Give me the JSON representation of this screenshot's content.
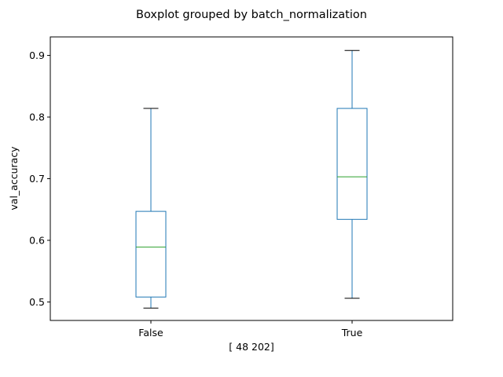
{
  "chart_data": {
    "type": "boxplot",
    "title": "Boxplot grouped by batch_normalization",
    "xlabel": "[ 48 202]",
    "ylabel": "val_accuracy",
    "categories": [
      "False",
      "True"
    ],
    "ylim": [
      0.47,
      0.93
    ],
    "yticks": [
      0.5,
      0.6,
      0.7,
      0.8,
      0.9
    ],
    "grid": false,
    "box_color": "#1f77b4",
    "median_color": "#2ca02c",
    "whisker_cap_color": "#000000",
    "boxes": [
      {
        "category": "False",
        "whisker_low": 0.49,
        "q1": 0.508,
        "median": 0.589,
        "q3": 0.647,
        "whisker_high": 0.814
      },
      {
        "category": "True",
        "whisker_low": 0.506,
        "q1": 0.634,
        "median": 0.703,
        "q3": 0.814,
        "whisker_high": 0.908
      }
    ]
  }
}
